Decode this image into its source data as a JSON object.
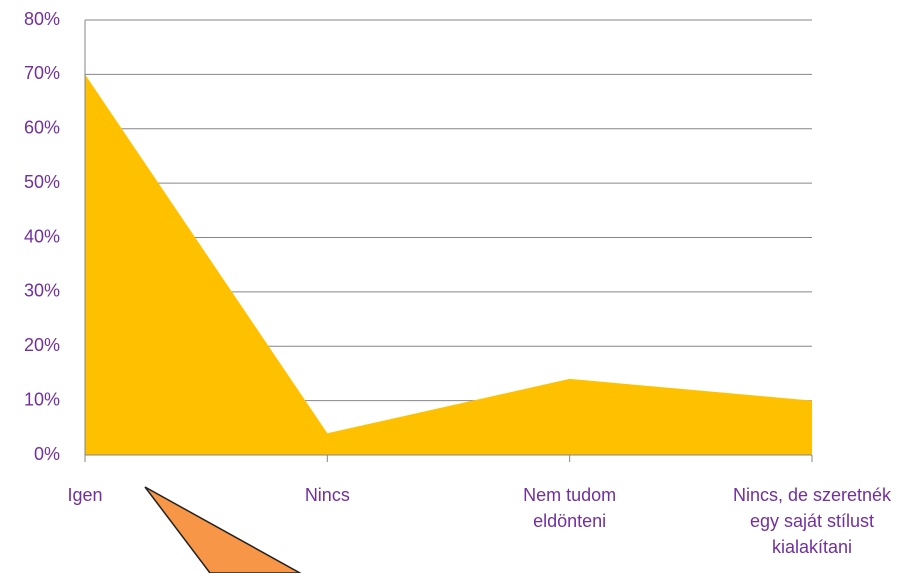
{
  "chart_data": {
    "type": "area",
    "categories": [
      "Igen",
      "Nincs",
      "Nem tudom eldönteni",
      "Nincs, de szeretnék egy saját stílust kialakítani"
    ],
    "values": [
      70,
      4,
      14,
      10
    ],
    "color": "#ffc000",
    "ylim": [
      0,
      80
    ],
    "yticks": [
      {
        "value": 0,
        "label": "0%"
      },
      {
        "value": 10,
        "label": "10%"
      },
      {
        "value": 20,
        "label": "20%"
      },
      {
        "value": 30,
        "label": "30%"
      },
      {
        "value": 40,
        "label": "40%"
      },
      {
        "value": 50,
        "label": "50%"
      },
      {
        "value": 60,
        "label": "60%"
      },
      {
        "value": 70,
        "label": "70%"
      },
      {
        "value": 80,
        "label": "80%"
      }
    ],
    "grid": true
  }
}
